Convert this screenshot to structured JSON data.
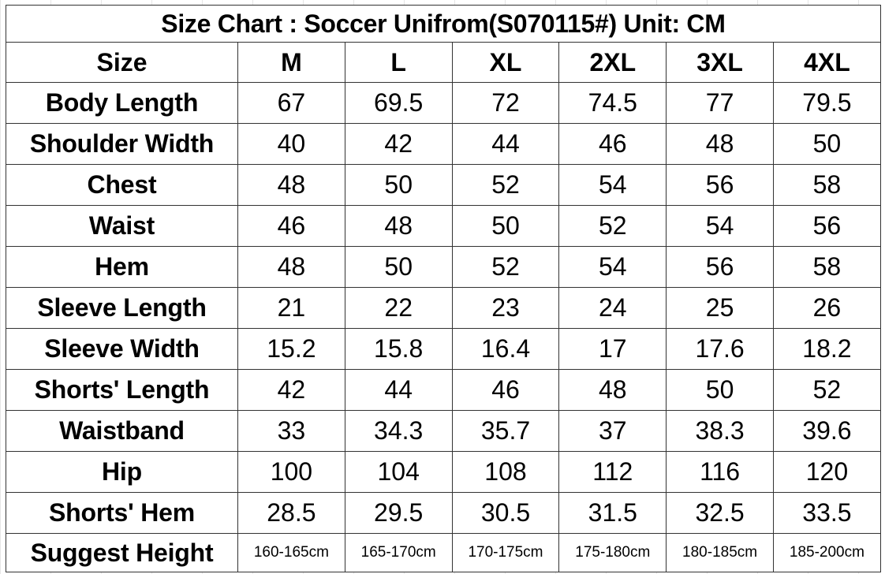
{
  "title": "Size Chart :  Soccer Unifrom(S070115#)  Unit: CM",
  "header": {
    "label": "Size",
    "sizes": [
      "M",
      "L",
      "XL",
      "2XL",
      "3XL",
      "4XL"
    ]
  },
  "rows": [
    {
      "label": "Body Length",
      "values": [
        "67",
        "69.5",
        "72",
        "74.5",
        "77",
        "79.5"
      ]
    },
    {
      "label": "Shoulder Width",
      "values": [
        "40",
        "42",
        "44",
        "46",
        "48",
        "50"
      ]
    },
    {
      "label": "Chest",
      "values": [
        "48",
        "50",
        "52",
        "54",
        "56",
        "58"
      ]
    },
    {
      "label": "Waist",
      "values": [
        "46",
        "48",
        "50",
        "52",
        "54",
        "56"
      ]
    },
    {
      "label": "Hem",
      "values": [
        "48",
        "50",
        "52",
        "54",
        "56",
        "58"
      ]
    },
    {
      "label": "Sleeve Length",
      "values": [
        "21",
        "22",
        "23",
        "24",
        "25",
        "26"
      ]
    },
    {
      "label": "Sleeve Width",
      "values": [
        "15.2",
        "15.8",
        "16.4",
        "17",
        "17.6",
        "18.2"
      ]
    },
    {
      "label": "Shorts' Length",
      "values": [
        "42",
        "44",
        "46",
        "48",
        "50",
        "52"
      ]
    },
    {
      "label": "Waistband",
      "values": [
        "33",
        "34.3",
        "35.7",
        "37",
        "38.3",
        "39.6"
      ]
    },
    {
      "label": "Hip",
      "values": [
        "100",
        "104",
        "108",
        "112",
        "116",
        "120"
      ]
    },
    {
      "label": "Shorts' Hem",
      "values": [
        "28.5",
        "29.5",
        "30.5",
        "31.5",
        "32.5",
        "33.5"
      ]
    },
    {
      "label": "Suggest Height",
      "values": [
        "160-165cm",
        "165-170cm",
        "170-175cm",
        "175-180cm",
        "180-185cm",
        "185-200cm"
      ]
    }
  ]
}
